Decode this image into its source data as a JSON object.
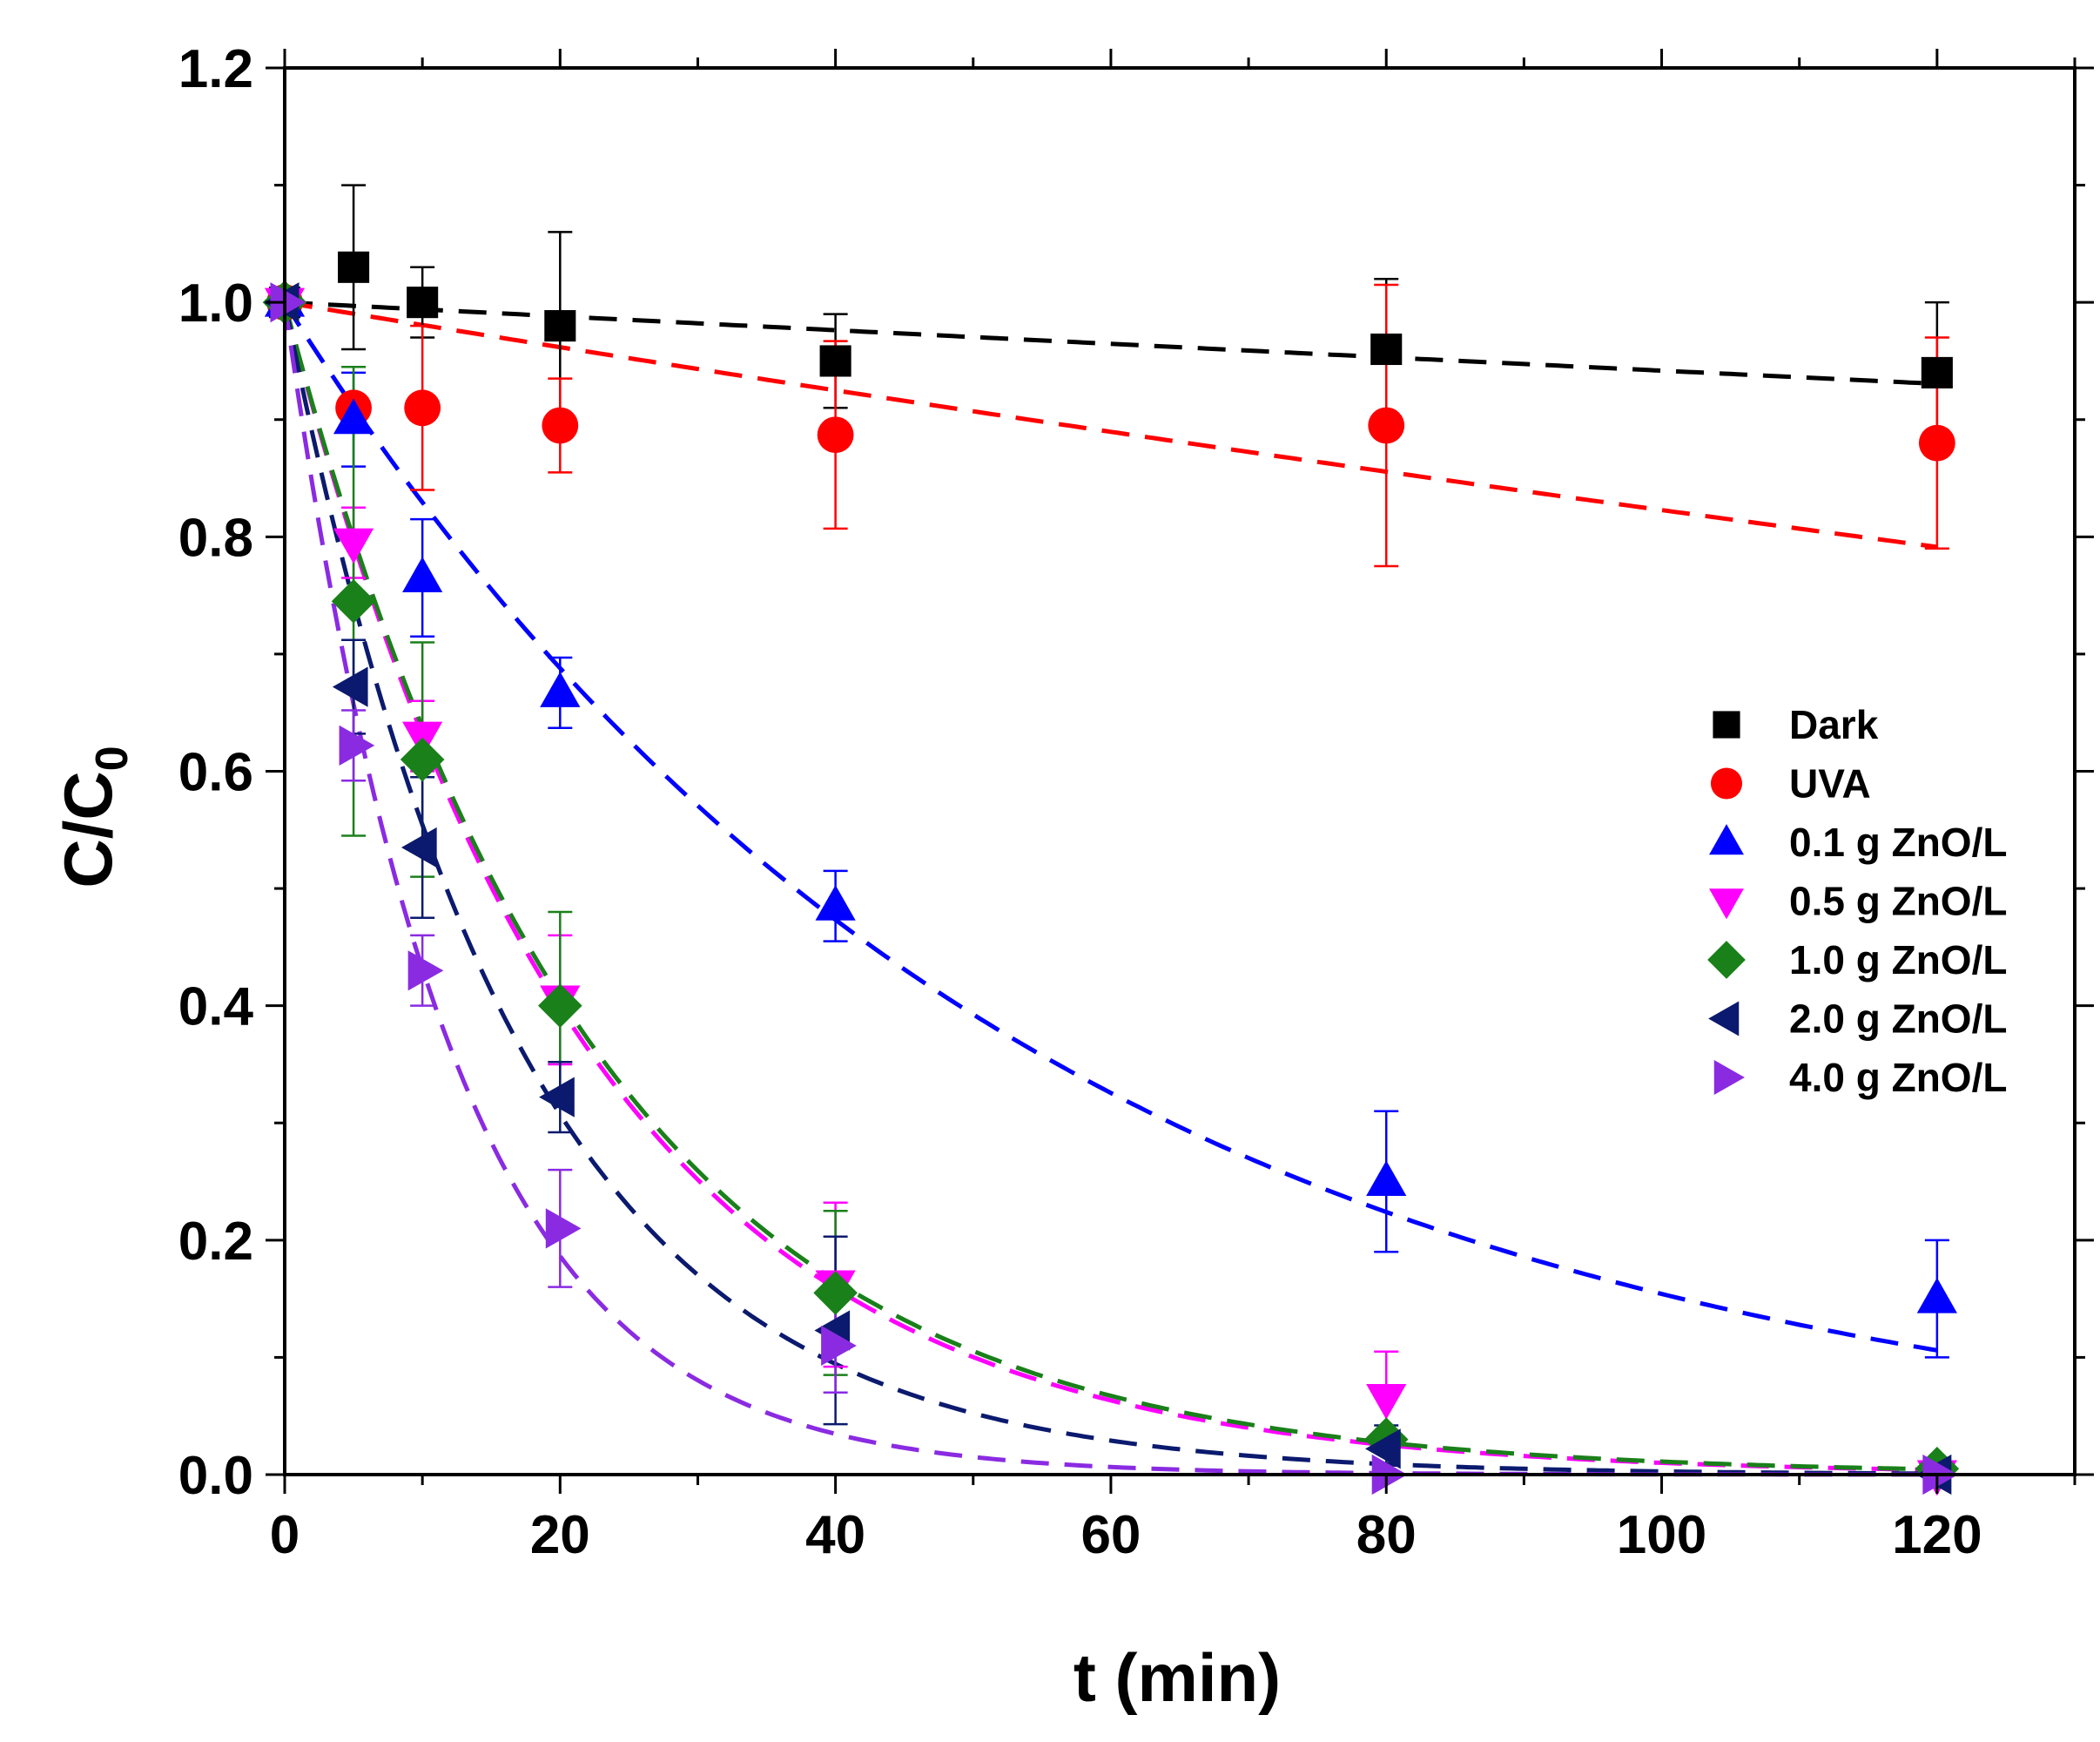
{
  "chart_data": {
    "type": "scatter",
    "title": "",
    "xlabel": "t (min)",
    "ylabel": {
      "main": "C/C",
      "sub": "0"
    },
    "xlim": [
      0,
      130
    ],
    "ylim": [
      0,
      1.2
    ],
    "xticks": [
      0,
      20,
      40,
      60,
      80,
      100,
      120
    ],
    "yticks": [
      0.0,
      0.2,
      0.4,
      0.6,
      0.8,
      1.0,
      1.2
    ],
    "xtick_labels": [
      "0",
      "20",
      "40",
      "60",
      "80",
      "100",
      "120"
    ],
    "ytick_labels": [
      "0.0",
      "0.2",
      "0.4",
      "0.6",
      "0.8",
      "1.0",
      "1.2"
    ],
    "x": [
      0,
      5,
      10,
      20,
      40,
      80,
      120
    ],
    "legend_position": "right",
    "series": [
      {
        "name": "Dark",
        "color": "#000000",
        "marker": "square",
        "values": [
          1.0,
          1.03,
          1.0,
          0.98,
          0.95,
          0.96,
          0.94
        ],
        "errors": [
          0.0,
          0.07,
          0.03,
          0.08,
          0.04,
          0.06,
          0.06
        ],
        "fit_k": 0.0006
      },
      {
        "name": "UVA",
        "color": "#ff0000",
        "marker": "circle",
        "values": [
          1.0,
          0.91,
          0.91,
          0.895,
          0.887,
          0.895,
          0.88
        ],
        "errors": [
          0.0,
          0.0,
          0.07,
          0.04,
          0.08,
          0.12,
          0.09
        ],
        "fit_k": 0.00195
      },
      {
        "name": "0.1 g ZnO/L",
        "color": "#0000ff",
        "marker": "triangle-up",
        "values": [
          1.0,
          0.9,
          0.765,
          0.667,
          0.485,
          0.25,
          0.15
        ],
        "errors": [
          0.0,
          0.04,
          0.05,
          0.03,
          0.03,
          0.06,
          0.05
        ],
        "fit_k": 0.0187
      },
      {
        "name": "0.5 g ZnO/L",
        "color": "#ff00ff",
        "marker": "triangle-down",
        "values": [
          1.0,
          0.795,
          0.63,
          0.405,
          0.162,
          0.065,
          0.0
        ],
        "errors": [
          0.0,
          0.03,
          0.03,
          0.055,
          0.07,
          0.04,
          0.0
        ],
        "fit_k": 0.046
      },
      {
        "name": "1.0 g ZnO/L",
        "color": "#1a801a",
        "marker": "diamond",
        "values": [
          1.0,
          0.745,
          0.61,
          0.4,
          0.155,
          0.03,
          0.005
        ],
        "errors": [
          0.0,
          0.2,
          0.1,
          0.08,
          0.07,
          0.0,
          0.0
        ],
        "fit_k": 0.045
      },
      {
        "name": "2.0 g ZnO/L",
        "color": "#0b1a6e",
        "marker": "triangle-left",
        "values": [
          1.0,
          0.672,
          0.535,
          0.322,
          0.123,
          0.022,
          0.0
        ],
        "errors": [
          0.0,
          0.04,
          0.06,
          0.03,
          0.08,
          0.02,
          0.0
        ],
        "fit_k": 0.059
      },
      {
        "name": "4.0 g ZnO/L",
        "color": "#8a2be2",
        "marker": "triangle-right",
        "values": [
          1.0,
          0.622,
          0.43,
          0.21,
          0.11,
          0.0,
          0.0
        ],
        "errors": [
          0.0,
          0.03,
          0.03,
          0.05,
          0.04,
          0.0,
          0.0
        ],
        "fit_k": 0.084
      }
    ]
  }
}
